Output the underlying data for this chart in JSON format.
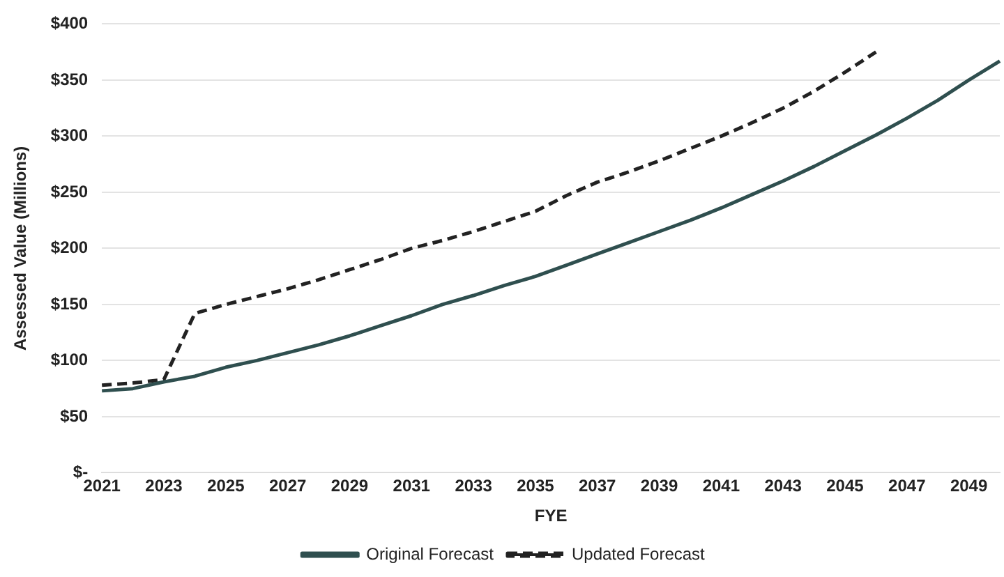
{
  "chart_data": {
    "type": "line",
    "xlabel": "FYE",
    "ylabel": "Assessed Value (Millions)",
    "categories": [
      "2021",
      null,
      "2023",
      null,
      "2025",
      null,
      "2027",
      null,
      "2029",
      null,
      "2031",
      null,
      "2033",
      null,
      "2035",
      null,
      "2037",
      null,
      "2039",
      null,
      "2041",
      null,
      "2043",
      null,
      "2045",
      null,
      "2047",
      null,
      "2049",
      null
    ],
    "series": [
      {
        "name": "Original Forecast",
        "color": "#2f4f4f",
        "line_style": "solid",
        "values": [
          73,
          75,
          81,
          86,
          94,
          100,
          107,
          114,
          122,
          131,
          140,
          150,
          158,
          167,
          175,
          185,
          195,
          205,
          215,
          225,
          236,
          248,
          260,
          273,
          287,
          301,
          316,
          332,
          350,
          367
        ]
      },
      {
        "name": "Updated Forecast",
        "color": "#222222",
        "line_style": "dashed",
        "values": [
          78,
          80,
          83,
          142,
          150,
          157,
          164,
          172,
          181,
          190,
          200,
          207,
          215,
          224,
          233,
          247,
          259,
          268,
          278,
          289,
          300,
          312,
          325,
          340,
          357,
          375,
          null,
          null,
          null,
          null
        ]
      }
    ],
    "ylim": [
      0,
      400
    ],
    "yticks": [
      {
        "value": 0,
        "label": "$-"
      },
      {
        "value": 50,
        "label": "$50"
      },
      {
        "value": 100,
        "label": "$100"
      },
      {
        "value": 150,
        "label": "$150"
      },
      {
        "value": 200,
        "label": "$200"
      },
      {
        "value": 250,
        "label": "$250"
      },
      {
        "value": 300,
        "label": "$300"
      },
      {
        "value": 350,
        "label": "$350"
      },
      {
        "value": 400,
        "label": "$400"
      }
    ],
    "grid": "y",
    "legend": "bottom",
    "marker": "none"
  }
}
